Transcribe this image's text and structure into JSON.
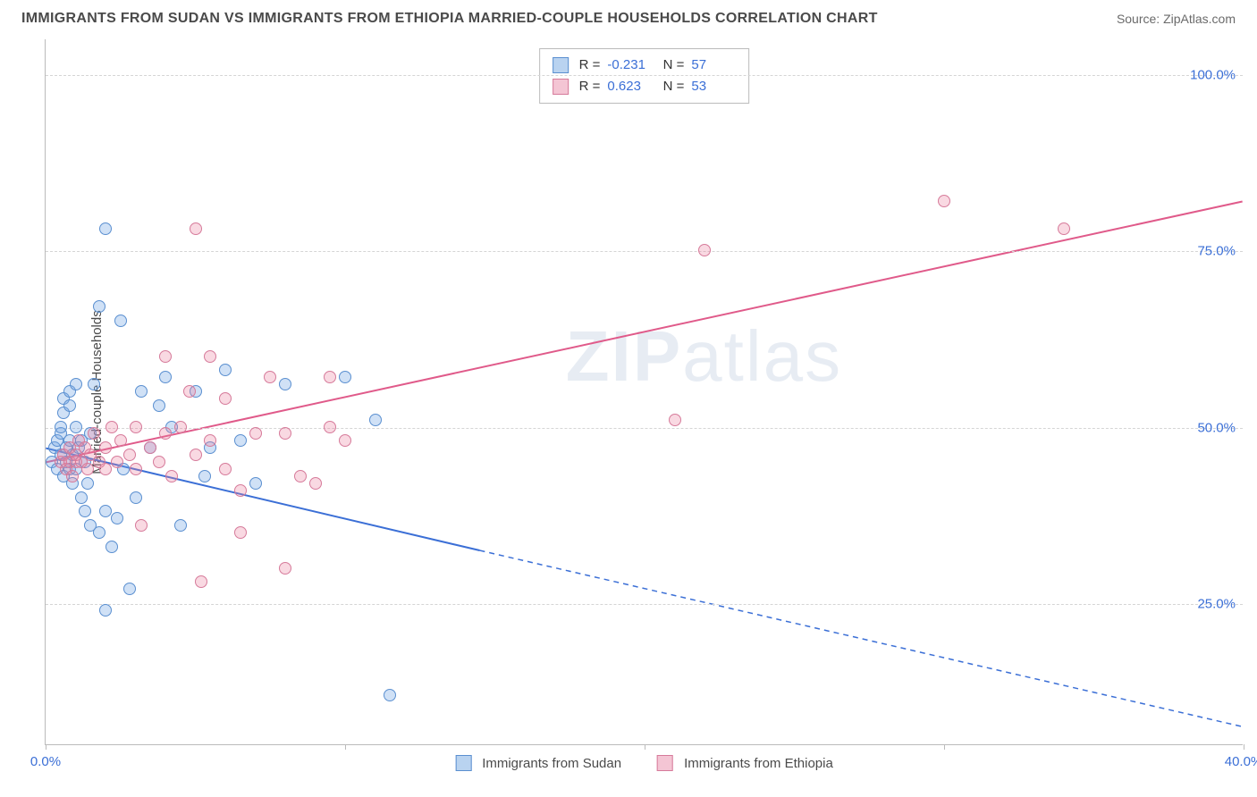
{
  "header": {
    "title": "IMMIGRANTS FROM SUDAN VS IMMIGRANTS FROM ETHIOPIA MARRIED-COUPLE HOUSEHOLDS CORRELATION CHART",
    "source": "Source: ZipAtlas.com"
  },
  "chart": {
    "type": "scatter",
    "y_axis_label": "Married-couple Households",
    "watermark": "ZIPatlas",
    "xlim": [
      0,
      40
    ],
    "ylim": [
      5,
      105
    ],
    "x_ticks": [
      0,
      10,
      20,
      30,
      40
    ],
    "x_tick_labels": [
      "0.0%",
      "",
      "",
      "",
      "40.0%"
    ],
    "y_ticks": [
      25,
      50,
      75,
      100
    ],
    "y_tick_labels": [
      "25.0%",
      "50.0%",
      "75.0%",
      "100.0%"
    ],
    "grid_color": "#d5d5d5",
    "axis_color": "#bbbbbb",
    "background_color": "#ffffff",
    "series": [
      {
        "name": "Immigrants from Sudan",
        "color_fill": "rgba(120,170,230,0.35)",
        "color_stroke": "#5a8fd0",
        "swatch_fill": "#b9d3f0",
        "swatch_border": "#5a8fd0",
        "r": "-0.231",
        "n": "57",
        "regression": {
          "x1": 0,
          "y1": 47,
          "x2": 14.5,
          "y2": 32.5,
          "x2_ext": 40,
          "y2_ext": 7.5,
          "stroke": "#3b6fd6",
          "width": 2
        },
        "points": [
          [
            0.2,
            45
          ],
          [
            0.3,
            47
          ],
          [
            0.4,
            48
          ],
          [
            0.4,
            44
          ],
          [
            0.5,
            46
          ],
          [
            0.5,
            49
          ],
          [
            0.5,
            50
          ],
          [
            0.6,
            43
          ],
          [
            0.6,
            52
          ],
          [
            0.6,
            54
          ],
          [
            0.7,
            45
          ],
          [
            0.7,
            47
          ],
          [
            0.8,
            44
          ],
          [
            0.8,
            48
          ],
          [
            0.8,
            53
          ],
          [
            0.8,
            55
          ],
          [
            0.9,
            42
          ],
          [
            0.9,
            46
          ],
          [
            1.0,
            44
          ],
          [
            1.0,
            50
          ],
          [
            1.0,
            56
          ],
          [
            1.1,
            47
          ],
          [
            1.2,
            40
          ],
          [
            1.2,
            48
          ],
          [
            1.3,
            38
          ],
          [
            1.3,
            45
          ],
          [
            1.4,
            42
          ],
          [
            1.5,
            36
          ],
          [
            1.5,
            49
          ],
          [
            1.6,
            56
          ],
          [
            1.8,
            35
          ],
          [
            1.8,
            67
          ],
          [
            2.0,
            78
          ],
          [
            2.0,
            38
          ],
          [
            2.0,
            24
          ],
          [
            2.2,
            33
          ],
          [
            2.4,
            37
          ],
          [
            2.5,
            65
          ],
          [
            2.6,
            44
          ],
          [
            2.8,
            27
          ],
          [
            3.0,
            40
          ],
          [
            3.2,
            55
          ],
          [
            3.5,
            47
          ],
          [
            3.8,
            53
          ],
          [
            4.0,
            57
          ],
          [
            4.2,
            50
          ],
          [
            4.5,
            36
          ],
          [
            5.0,
            55
          ],
          [
            5.3,
            43
          ],
          [
            5.5,
            47
          ],
          [
            6.0,
            58
          ],
          [
            6.5,
            48
          ],
          [
            7.0,
            42
          ],
          [
            8.0,
            56
          ],
          [
            10.0,
            57
          ],
          [
            11.0,
            51
          ],
          [
            11.5,
            12
          ]
        ]
      },
      {
        "name": "Immigrants from Ethiopia",
        "color_fill": "rgba(235,130,160,0.3)",
        "color_stroke": "#d67a9a",
        "swatch_fill": "#f4c5d4",
        "swatch_border": "#d67a9a",
        "r": "0.623",
        "n": "53",
        "regression": {
          "x1": 0,
          "y1": 45,
          "x2": 40,
          "y2": 82,
          "stroke": "#e05a8a",
          "width": 2
        },
        "points": [
          [
            0.5,
            45
          ],
          [
            0.6,
            46
          ],
          [
            0.7,
            44
          ],
          [
            0.8,
            45
          ],
          [
            0.8,
            47
          ],
          [
            0.9,
            43
          ],
          [
            1.0,
            45
          ],
          [
            1.0,
            46
          ],
          [
            1.1,
            48
          ],
          [
            1.2,
            45
          ],
          [
            1.3,
            47
          ],
          [
            1.4,
            44
          ],
          [
            1.5,
            46
          ],
          [
            1.6,
            49
          ],
          [
            1.8,
            45
          ],
          [
            2.0,
            44
          ],
          [
            2.0,
            47
          ],
          [
            2.2,
            50
          ],
          [
            2.4,
            45
          ],
          [
            2.5,
            48
          ],
          [
            2.8,
            46
          ],
          [
            3.0,
            44
          ],
          [
            3.0,
            50
          ],
          [
            3.2,
            36
          ],
          [
            3.5,
            47
          ],
          [
            3.8,
            45
          ],
          [
            4.0,
            49
          ],
          [
            4.0,
            60
          ],
          [
            4.2,
            43
          ],
          [
            4.5,
            50
          ],
          [
            4.8,
            55
          ],
          [
            5.0,
            46
          ],
          [
            5.0,
            78
          ],
          [
            5.2,
            28
          ],
          [
            5.5,
            48
          ],
          [
            5.5,
            60
          ],
          [
            6.0,
            44
          ],
          [
            6.0,
            54
          ],
          [
            6.5,
            41
          ],
          [
            6.5,
            35
          ],
          [
            7.0,
            49
          ],
          [
            7.5,
            57
          ],
          [
            8.0,
            30
          ],
          [
            8.0,
            49
          ],
          [
            8.5,
            43
          ],
          [
            9.0,
            42
          ],
          [
            9.5,
            50
          ],
          [
            9.5,
            57
          ],
          [
            10.0,
            48
          ],
          [
            22.0,
            75
          ],
          [
            21.0,
            51
          ],
          [
            30.0,
            82
          ],
          [
            34.0,
            78
          ]
        ]
      }
    ]
  },
  "legend": {
    "items": [
      {
        "label": "Immigrants from Sudan"
      },
      {
        "label": "Immigrants from Ethiopia"
      }
    ]
  }
}
